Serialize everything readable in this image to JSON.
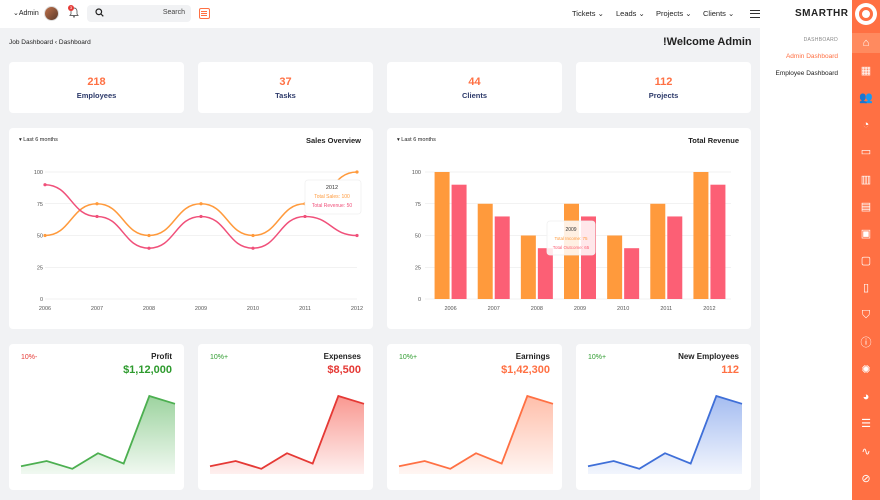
{
  "header": {
    "admin_label": "Admin",
    "admin_caret": "⌄",
    "notification_count": "3",
    "search_label": "Search",
    "nav": [
      {
        "label": "Tickets"
      },
      {
        "label": "Leads"
      },
      {
        "label": "Projects"
      },
      {
        "label": "Clients"
      }
    ],
    "nav_caret": "⌄"
  },
  "brand": "SMARTHR",
  "right_panel": {
    "heading": "DASHBOARD",
    "items": [
      {
        "label": "Admin Dashboard",
        "active": true
      },
      {
        "label": "Employee Dashboard",
        "active": false
      }
    ]
  },
  "breadcrumb": {
    "first": "Job Dashboard",
    "sep": "‹",
    "second": "Dashboard"
  },
  "welcome": "!Welcome Admin",
  "stats": [
    {
      "value": "218",
      "label": "Employees"
    },
    {
      "value": "37",
      "label": "Tasks"
    },
    {
      "value": "44",
      "label": "Clients"
    },
    {
      "value": "112",
      "label": "Projects"
    }
  ],
  "sales_overview": {
    "title": "Sales Overview",
    "period": "Last 6 months",
    "tooltip": {
      "year": "2012",
      "line1": "Total Sales: 100",
      "line2": "Total Revenue: 50"
    },
    "colors": {
      "sales": "#ff9a3c",
      "revenue": "#f0507a"
    }
  },
  "total_revenue": {
    "title": "Total Revenue",
    "period": "Last 6 months",
    "tooltip": {
      "year": "2009",
      "line1": "Total Income: 75",
      "line2": "Total Outcome: 65"
    },
    "colors": {
      "income": "#ff9a3c",
      "outcome": "#fc5f75"
    }
  },
  "chart_data": [
    {
      "type": "line",
      "title": "Sales Overview",
      "categories": [
        "2006",
        "2007",
        "2008",
        "2009",
        "2010",
        "2011",
        "2012"
      ],
      "ylim": [
        0,
        100
      ],
      "yticks": [
        0,
        25,
        50,
        75,
        100
      ],
      "series": [
        {
          "name": "Total Sales",
          "values": [
            50,
            75,
            50,
            75,
            50,
            75,
            100
          ]
        },
        {
          "name": "Total Revenue",
          "values": [
            90,
            65,
            40,
            65,
            40,
            65,
            50
          ]
        }
      ]
    },
    {
      "type": "bar",
      "title": "Total Revenue",
      "categories": [
        "2006",
        "2007",
        "2008",
        "2009",
        "2010",
        "2011",
        "2012"
      ],
      "ylim": [
        0,
        100
      ],
      "yticks": [
        0,
        25,
        50,
        75,
        100
      ],
      "series": [
        {
          "name": "Total Income",
          "values": [
            100,
            75,
            50,
            75,
            50,
            75,
            100
          ]
        },
        {
          "name": "Total Outcome",
          "values": [
            90,
            65,
            40,
            65,
            40,
            65,
            90
          ]
        }
      ]
    }
  ],
  "mini_cards": [
    {
      "name": "Profit",
      "value": "$1,12,000",
      "pct": "10%-",
      "pct_color": "#e53935",
      "value_color": "#2e9b2e",
      "line_color": "#4caf50",
      "fill_color": "#4caf50",
      "trend": [
        3,
        5,
        2,
        8,
        4,
        30,
        27
      ]
    },
    {
      "name": "Expenses",
      "value": "$8,500",
      "pct": "10%+",
      "pct_color": "#2e9b2e",
      "value_color": "#e53935",
      "line_color": "#e53935",
      "fill_color": "#f44336",
      "trend": [
        3,
        5,
        2,
        8,
        4,
        30,
        27
      ]
    },
    {
      "name": "Earnings",
      "value": "$1,42,300",
      "pct": "10%+",
      "pct_color": "#2e9b2e",
      "value_color": "#ff7043",
      "line_color": "#ff7043",
      "fill_color": "#ff8a65",
      "trend": [
        3,
        5,
        2,
        8,
        4,
        30,
        27
      ]
    },
    {
      "name": "New Employees",
      "value": "112",
      "pct": "10%+",
      "pct_color": "#2e9b2e",
      "value_color": "#ff7043",
      "line_color": "#3f6fd8",
      "fill_color": "#5b86e5",
      "trend": [
        3,
        5,
        2,
        8,
        4,
        30,
        27
      ]
    }
  ],
  "rail_icons": [
    "logo-icon",
    "home-icon",
    "dashboard-icon",
    "users-icon",
    "user-icon",
    "folder-icon",
    "bar-chart-icon",
    "ticket-icon",
    "briefcase-icon",
    "wallet-icon",
    "file-icon",
    "shield-icon",
    "info-icon",
    "settings-icon",
    "pie-chart-icon",
    "list-icon",
    "line-chart-icon",
    "ban-icon"
  ]
}
